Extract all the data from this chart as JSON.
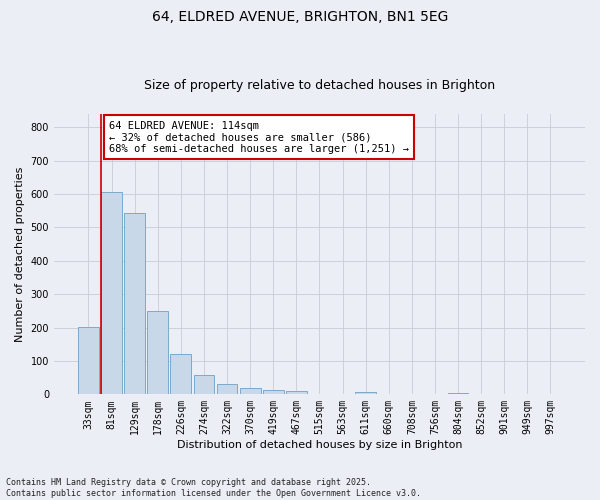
{
  "title_line1": "64, ELDRED AVENUE, BRIGHTON, BN1 5EG",
  "title_line2": "Size of property relative to detached houses in Brighton",
  "xlabel": "Distribution of detached houses by size in Brighton",
  "ylabel": "Number of detached properties",
  "categories": [
    "33sqm",
    "81sqm",
    "129sqm",
    "178sqm",
    "226sqm",
    "274sqm",
    "322sqm",
    "370sqm",
    "419sqm",
    "467sqm",
    "515sqm",
    "563sqm",
    "611sqm",
    "660sqm",
    "708sqm",
    "756sqm",
    "804sqm",
    "852sqm",
    "901sqm",
    "949sqm",
    "997sqm"
  ],
  "values": [
    203,
    607,
    543,
    250,
    120,
    57,
    32,
    18,
    14,
    10,
    2,
    2,
    8,
    0,
    0,
    0,
    5,
    0,
    0,
    0,
    0
  ],
  "bar_color": "#c8d8e8",
  "bar_edge_color": "#7aaace",
  "vline_x_index": 1,
  "vline_color": "#cc0000",
  "annotation_text": "64 ELDRED AVENUE: 114sqm\n← 32% of detached houses are smaller (586)\n68% of semi-detached houses are larger (1,251) →",
  "annotation_box_color": "#ffffff",
  "annotation_box_edge_color": "#cc0000",
  "ylim": [
    0,
    840
  ],
  "yticks": [
    0,
    100,
    200,
    300,
    400,
    500,
    600,
    700,
    800
  ],
  "grid_color": "#c8ccd8",
  "bg_color": "#eceef5",
  "footnote": "Contains HM Land Registry data © Crown copyright and database right 2025.\nContains public sector information licensed under the Open Government Licence v3.0.",
  "title_fontsize": 10,
  "subtitle_fontsize": 9,
  "axis_label_fontsize": 8,
  "tick_fontsize": 7,
  "annot_fontsize": 7.5
}
